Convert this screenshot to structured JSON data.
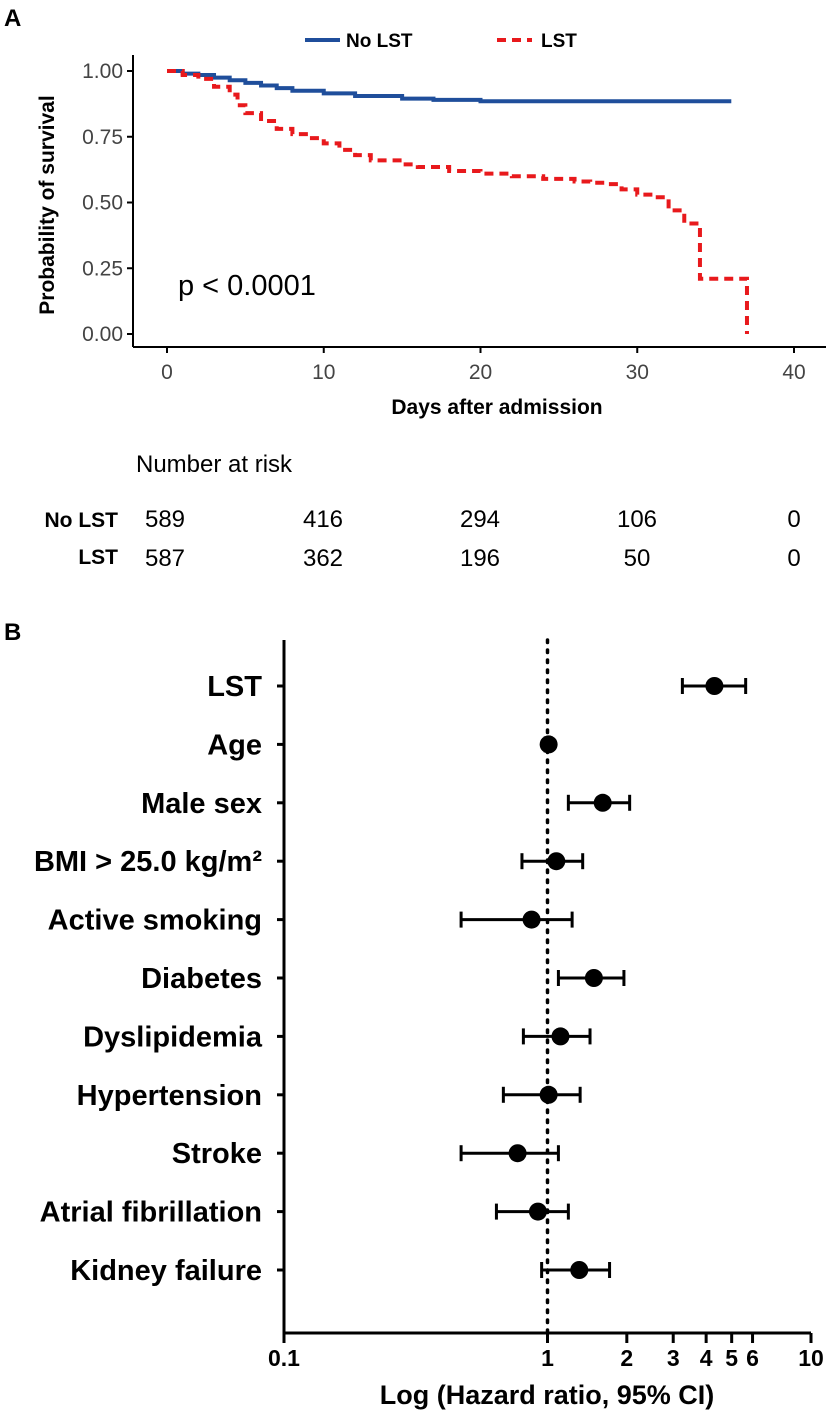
{
  "chart_data": [
    {
      "panel": "A",
      "type": "line",
      "subtype": "kaplan-meier",
      "xlabel": "Days after admission",
      "ylabel": "Probability of survival",
      "xlim": [
        0,
        40
      ],
      "ylim": [
        0,
        1
      ],
      "x_ticks": [
        0,
        10,
        20,
        30,
        40
      ],
      "y_ticks": [
        "0.00",
        "0.25",
        "0.50",
        "0.75",
        "1.00"
      ],
      "annotation": "p < 0.0001",
      "legend": [
        "No LST",
        "LST"
      ],
      "series": [
        {
          "name": "No LST",
          "color": "#1f4e9b",
          "style": "solid",
          "points": [
            [
              0,
              1.0
            ],
            [
              1,
              0.99
            ],
            [
              2,
              0.985
            ],
            [
              3,
              0.975
            ],
            [
              4,
              0.965
            ],
            [
              5,
              0.955
            ],
            [
              6,
              0.945
            ],
            [
              7,
              0.935
            ],
            [
              8,
              0.925
            ],
            [
              10,
              0.915
            ],
            [
              12,
              0.905
            ],
            [
              15,
              0.895
            ],
            [
              17,
              0.89
            ],
            [
              20,
              0.885
            ],
            [
              36,
              0.885
            ]
          ]
        },
        {
          "name": "LST",
          "color": "#e8191c",
          "style": "dashed",
          "points": [
            [
              0,
              1.0
            ],
            [
              1,
              0.985
            ],
            [
              2,
              0.97
            ],
            [
              3,
              0.94
            ],
            [
              4,
              0.91
            ],
            [
              4.5,
              0.87
            ],
            [
              5,
              0.84
            ],
            [
              6,
              0.81
            ],
            [
              7,
              0.78
            ],
            [
              8,
              0.76
            ],
            [
              9,
              0.745
            ],
            [
              10,
              0.725
            ],
            [
              11,
              0.7
            ],
            [
              12,
              0.68
            ],
            [
              13,
              0.66
            ],
            [
              15,
              0.645
            ],
            [
              16,
              0.635
            ],
            [
              18,
              0.62
            ],
            [
              20,
              0.61
            ],
            [
              22,
              0.6
            ],
            [
              24,
              0.59
            ],
            [
              26,
              0.58
            ],
            [
              27,
              0.575
            ],
            [
              28,
              0.57
            ],
            [
              29,
              0.55
            ],
            [
              30,
              0.53
            ],
            [
              31,
              0.52
            ],
            [
              32,
              0.47
            ],
            [
              33,
              0.42
            ],
            [
              34,
              0.21
            ],
            [
              36,
              0.21
            ],
            [
              37,
              0.0
            ]
          ]
        }
      ]
    },
    {
      "panel": "B",
      "type": "forest",
      "xlabel": "Log (Hazard ratio, 95% CI)",
      "xscale": "log",
      "xlim": [
        0.1,
        10
      ],
      "reference": 1,
      "x_ticks": [
        0.1,
        1,
        2,
        3,
        4,
        5,
        6,
        10
      ],
      "x_tick_labels": [
        "0.1",
        "1",
        "2",
        "3",
        "4",
        "5",
        "6",
        "10"
      ],
      "rows": [
        {
          "label": "LST",
          "hr": 4.3,
          "lower": 3.25,
          "upper": 5.65
        },
        {
          "label": "Age",
          "hr": 1.01,
          "lower": 0.98,
          "upper": 1.03
        },
        {
          "label": "Male sex",
          "hr": 1.62,
          "lower": 1.2,
          "upper": 2.05
        },
        {
          "label": "BMI > 25.0 kg/m²",
          "hr": 1.08,
          "lower": 0.8,
          "upper": 1.36
        },
        {
          "label": "Active smoking",
          "hr": 0.87,
          "lower": 0.47,
          "upper": 1.24
        },
        {
          "label": "Diabetes",
          "hr": 1.5,
          "lower": 1.1,
          "upper": 1.95
        },
        {
          "label": "Dyslipidemia",
          "hr": 1.12,
          "lower": 0.81,
          "upper": 1.45
        },
        {
          "label": "Hypertension",
          "hr": 1.01,
          "lower": 0.68,
          "upper": 1.33
        },
        {
          "label": "Stroke",
          "hr": 0.77,
          "lower": 0.47,
          "upper": 1.1
        },
        {
          "label": "Atrial fibrillation",
          "hr": 0.92,
          "lower": 0.64,
          "upper": 1.2
        },
        {
          "label": "Kidney failure",
          "hr": 1.32,
          "lower": 0.95,
          "upper": 1.72
        }
      ]
    }
  ],
  "panel_letters": {
    "a": "A",
    "b": "B"
  },
  "risk_table": {
    "title": "Number at risk",
    "rows": [
      {
        "group": "No LST",
        "values": [
          "589",
          "416",
          "294",
          "106",
          "0"
        ]
      },
      {
        "group": "LST",
        "values": [
          "587",
          "362",
          "196",
          "50",
          "0"
        ]
      }
    ]
  }
}
